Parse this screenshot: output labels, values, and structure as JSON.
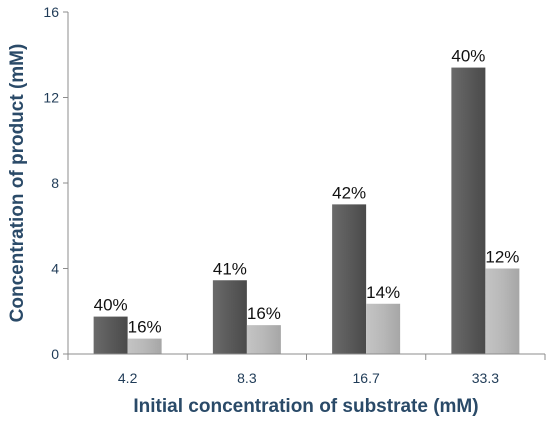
{
  "chart_data": {
    "type": "bar",
    "xlabel": "Initial concentration of substrate (mM)",
    "ylabel": "Concentration of product (mM)",
    "categories": [
      "4.2",
      "8.3",
      "16.7",
      "33.3"
    ],
    "ylim": [
      0,
      16
    ],
    "yticks": [
      0,
      4,
      8,
      12,
      16
    ],
    "grid": false,
    "series": [
      {
        "values": [
          1.75,
          3.45,
          7.0,
          13.4
        ],
        "labels": [
          "40%",
          "41%",
          "42%",
          "40%"
        ],
        "color": "#5f5f5f"
      },
      {
        "values": [
          0.72,
          1.35,
          2.35,
          4.0
        ],
        "labels": [
          "16%",
          "16%",
          "14%",
          "12%"
        ],
        "color": "#b5b5b5"
      }
    ]
  }
}
